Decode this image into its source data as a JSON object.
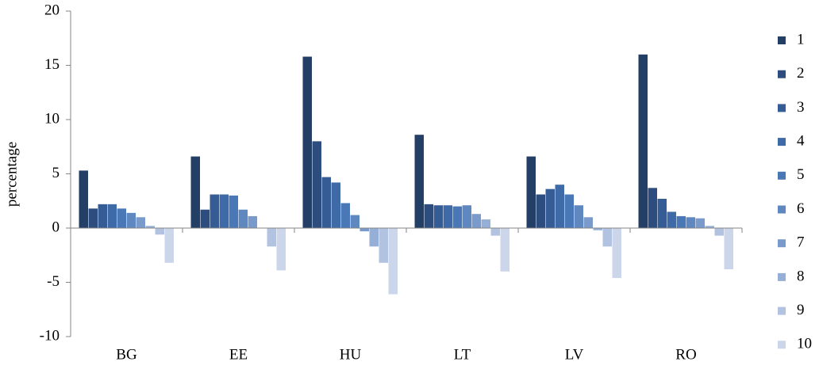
{
  "chart_data": {
    "type": "bar",
    "y_label": "percentage",
    "categories": [
      "BG",
      "EE",
      "HU",
      "LT",
      "LV",
      "RO"
    ],
    "series": [
      {
        "name": "1",
        "color": "#243f66",
        "values": [
          5.3,
          6.6,
          15.8,
          8.6,
          6.6,
          16.0
        ]
      },
      {
        "name": "2",
        "color": "#2c4d7e",
        "values": [
          1.8,
          1.7,
          8.0,
          2.2,
          3.1,
          3.7
        ]
      },
      {
        "name": "3",
        "color": "#355c94",
        "values": [
          2.2,
          3.1,
          4.7,
          2.1,
          3.6,
          2.7
        ]
      },
      {
        "name": "4",
        "color": "#3e6aa8",
        "values": [
          2.2,
          3.1,
          4.2,
          2.1,
          4.0,
          1.5
        ]
      },
      {
        "name": "5",
        "color": "#4a77b6",
        "values": [
          1.8,
          3.0,
          2.3,
          2.0,
          3.1,
          1.1
        ]
      },
      {
        "name": "6",
        "color": "#6088c0",
        "values": [
          1.4,
          1.7,
          1.2,
          2.1,
          2.1,
          1.0
        ]
      },
      {
        "name": "7",
        "color": "#7a9acb",
        "values": [
          1.0,
          1.1,
          -0.3,
          1.3,
          1.0,
          0.9
        ]
      },
      {
        "name": "8",
        "color": "#95afd6",
        "values": [
          0.2,
          0,
          -1.7,
          0.8,
          -0.2,
          0.2
        ]
      },
      {
        "name": "9",
        "color": "#b1c3e1",
        "values": [
          -0.6,
          -1.7,
          -3.2,
          -0.7,
          -1.7,
          -0.7
        ]
      },
      {
        "name": "10",
        "color": "#cbd6ea",
        "values": [
          -3.2,
          -3.9,
          -6.1,
          -4.0,
          -4.6,
          -3.8
        ]
      }
    ],
    "ylim": [
      -10,
      20
    ],
    "yticks": [
      -10,
      -5,
      0,
      5,
      10,
      15,
      20
    ],
    "legend": "right"
  }
}
